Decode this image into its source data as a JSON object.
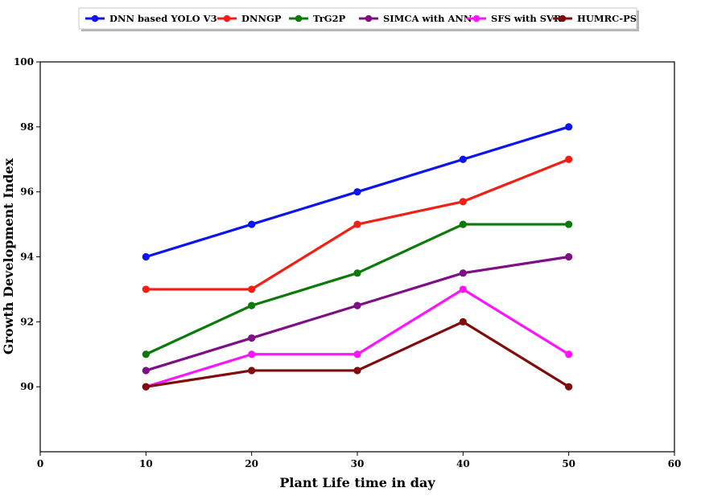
{
  "chart_data": {
    "type": "line",
    "title": "",
    "xlabel": "Plant Life time in day",
    "ylabel": "Growth Development Index",
    "xlim": [
      0,
      60
    ],
    "ylim": [
      88,
      100
    ],
    "xticks": [
      0,
      10,
      20,
      30,
      40,
      50,
      60
    ],
    "yticks": [
      90,
      92,
      94,
      96,
      98,
      100
    ],
    "grid": false,
    "legend_position": "top-center",
    "x": [
      10,
      20,
      30,
      40,
      50
    ],
    "series": [
      {
        "name": "DNN based YOLO V3",
        "color": "#0b14f2",
        "values": [
          94,
          95,
          96,
          97,
          98
        ]
      },
      {
        "name": "DNNGP",
        "color": "#f21f14",
        "values": [
          93,
          93,
          95,
          95.7,
          97
        ]
      },
      {
        "name": "TrG2P",
        "color": "#0b7a0b",
        "values": [
          91,
          92.5,
          93.5,
          95,
          95
        ]
      },
      {
        "name": "SIMCA with ANN",
        "color": "#7f0f85",
        "values": [
          90.5,
          91.5,
          92.5,
          93.5,
          94
        ]
      },
      {
        "name": "SFS with SVR",
        "color": "#ff14ff",
        "values": [
          90,
          91,
          91,
          93,
          91
        ]
      },
      {
        "name": "HUMRC-PS",
        "color": "#800b0b",
        "values": [
          90,
          90.5,
          90.5,
          92,
          90
        ]
      }
    ]
  }
}
